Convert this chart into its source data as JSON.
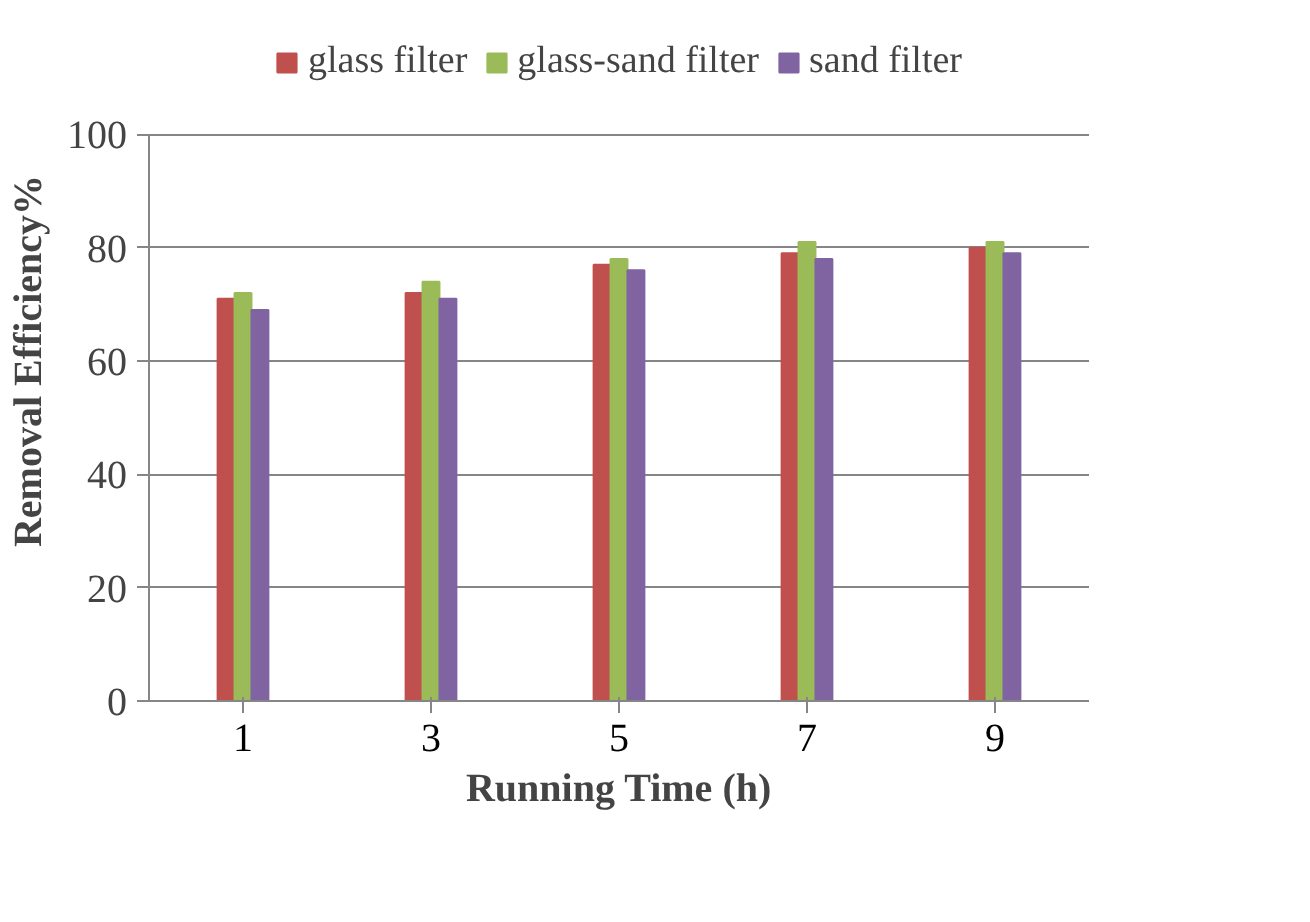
{
  "chart_data": {
    "type": "bar",
    "xlabel": "Running Time (h)",
    "ylabel": "Removal Efficiency%",
    "categories": [
      "1",
      "3",
      "5",
      "7",
      "9"
    ],
    "series": [
      {
        "name": "glass filter",
        "color": "#c0504d",
        "values": [
          71,
          72,
          77,
          79,
          80
        ]
      },
      {
        "name": "glass-sand filter",
        "color": "#9bbb59",
        "values": [
          72,
          74,
          78,
          81,
          81
        ]
      },
      {
        "name": "sand filter",
        "color": "#8064a2",
        "values": [
          69,
          71,
          76,
          78,
          79
        ]
      }
    ],
    "ylim": [
      0,
      100
    ],
    "yticks": [
      0,
      20,
      40,
      60,
      80,
      100
    ],
    "grid": "y",
    "legend": "top"
  }
}
